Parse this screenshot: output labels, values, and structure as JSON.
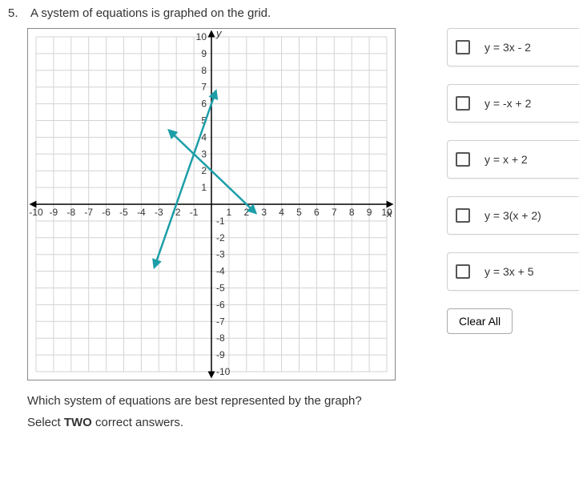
{
  "question": {
    "number": "5.",
    "stem": "A system of equations is graphed on the grid.",
    "subprompt": "Which system of equations are best represented by the graph?",
    "instruction_prefix": "Select ",
    "instruction_bold": "TWO",
    "instruction_suffix": " correct answers."
  },
  "options": [
    {
      "label": "y = 3x - 2"
    },
    {
      "label": "y = -x + 2"
    },
    {
      "label": "y = x + 2"
    },
    {
      "label": "y = 3(x + 2)"
    },
    {
      "label": "y = 3x + 5"
    }
  ],
  "clear_label": "Clear All",
  "graph": {
    "type": "line-system",
    "xmin": -10,
    "xmax": 10,
    "ymin": -10,
    "ymax": 10,
    "tick_step": 1,
    "grid_color": "#d3d3d3",
    "axis_color": "#000000",
    "background_color": "#ffffff",
    "x_axis_label": "x",
    "y_axis_label": "y",
    "tick_labels_x": [
      "-10",
      "-9",
      "-8",
      "-7",
      "-6",
      "-5",
      "-4",
      "-3",
      "-2",
      "-1",
      "1",
      "2",
      "3",
      "4",
      "5",
      "6",
      "7",
      "8",
      "9",
      "10"
    ],
    "tick_labels_y_pos": [
      "1",
      "2",
      "3",
      "4",
      "5",
      "6",
      "7",
      "8",
      "9",
      "10"
    ],
    "tick_labels_y_neg": [
      "-1",
      "-2",
      "-3",
      "-4",
      "-5",
      "-6",
      "-7",
      "-8",
      "-9",
      "-10"
    ],
    "lines": [
      {
        "name": "line-steep",
        "color": "#1c9ea8",
        "width": 2.5,
        "arrows": true,
        "x1": -3.2,
        "y1": -3.6,
        "x2": 0.2,
        "y2": 6.6
      },
      {
        "name": "line-shallow",
        "color": "#1c9ea8",
        "width": 2.5,
        "arrows": true,
        "x1": -2.3,
        "y1": 4.3,
        "x2": 2.4,
        "y2": -0.4
      }
    ]
  }
}
